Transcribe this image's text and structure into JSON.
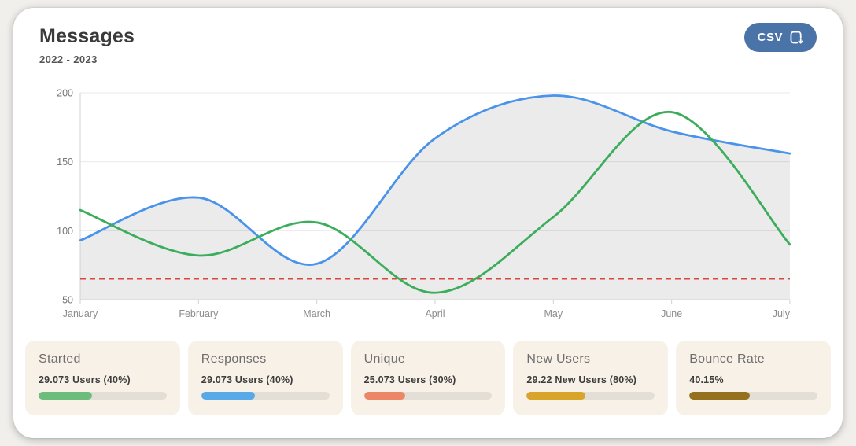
{
  "header": {
    "title": "Messages",
    "subtitle": "2022 - 2023"
  },
  "toolbar": {
    "csv_label": "CSV",
    "csv_icon": "download-icon"
  },
  "chart_data": {
    "type": "line",
    "title": "Messages 2022 - 2023",
    "categories": [
      "January",
      "February",
      "March",
      "April",
      "May",
      "June",
      "July"
    ],
    "yticks": [
      50,
      100,
      150,
      200
    ],
    "ylim": [
      50,
      200
    ],
    "grid": true,
    "legend": "none",
    "series": [
      {
        "name": "responses-area",
        "color": "#4a93ea",
        "fill": "rgba(0,0,0,0.08)",
        "smooth": true,
        "values": [
          93,
          124,
          76,
          167,
          198,
          172,
          156
        ]
      },
      {
        "name": "started-line",
        "color": "#3bad5b",
        "fill": "none",
        "smooth": true,
        "values": [
          115,
          82,
          106,
          55,
          110,
          186,
          90
        ]
      }
    ],
    "threshold": {
      "value": 65,
      "color": "#d9463e",
      "style": "dashed"
    }
  },
  "cards": [
    {
      "title": "Started",
      "value": "29.073 Users (40%)",
      "pct": 42,
      "color": "#6cbd7c"
    },
    {
      "title": "Responses",
      "value": "29.073 Users (40%)",
      "pct": 42,
      "color": "#58a9e8"
    },
    {
      "title": "Unique",
      "value": "25.073 Users (30%)",
      "pct": 32,
      "color": "#ed8667"
    },
    {
      "title": "New Users",
      "value": "29.22 New Users (80%)",
      "pct": 46,
      "color": "#d9a42a"
    },
    {
      "title": "Bounce Rate",
      "value": "40.15%",
      "pct": 47,
      "color": "#96701d"
    }
  ]
}
